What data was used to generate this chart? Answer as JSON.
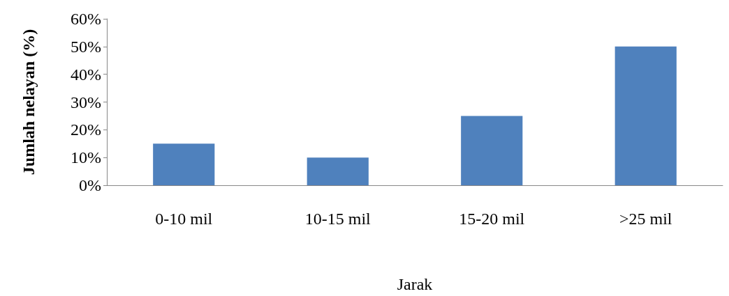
{
  "chart_data": {
    "type": "bar",
    "xlabel": "Jarak",
    "ylabel": "Jumlah nelayan (%)",
    "categories": [
      "0-10 mil",
      "10-15 mil",
      "15-20 mil",
      ">25 mil"
    ],
    "values": [
      15,
      10,
      25,
      50
    ],
    "color": "#4f81bd",
    "ylim": [
      0,
      60
    ],
    "yticks": [
      {
        "value": 0,
        "label": "0%"
      },
      {
        "value": 10,
        "label": "10%"
      },
      {
        "value": 20,
        "label": "20%"
      },
      {
        "value": 30,
        "label": "30%"
      },
      {
        "value": 40,
        "label": "40%"
      },
      {
        "value": 50,
        "label": "50%"
      },
      {
        "value": 60,
        "label": "60%"
      }
    ],
    "grid": false
  }
}
